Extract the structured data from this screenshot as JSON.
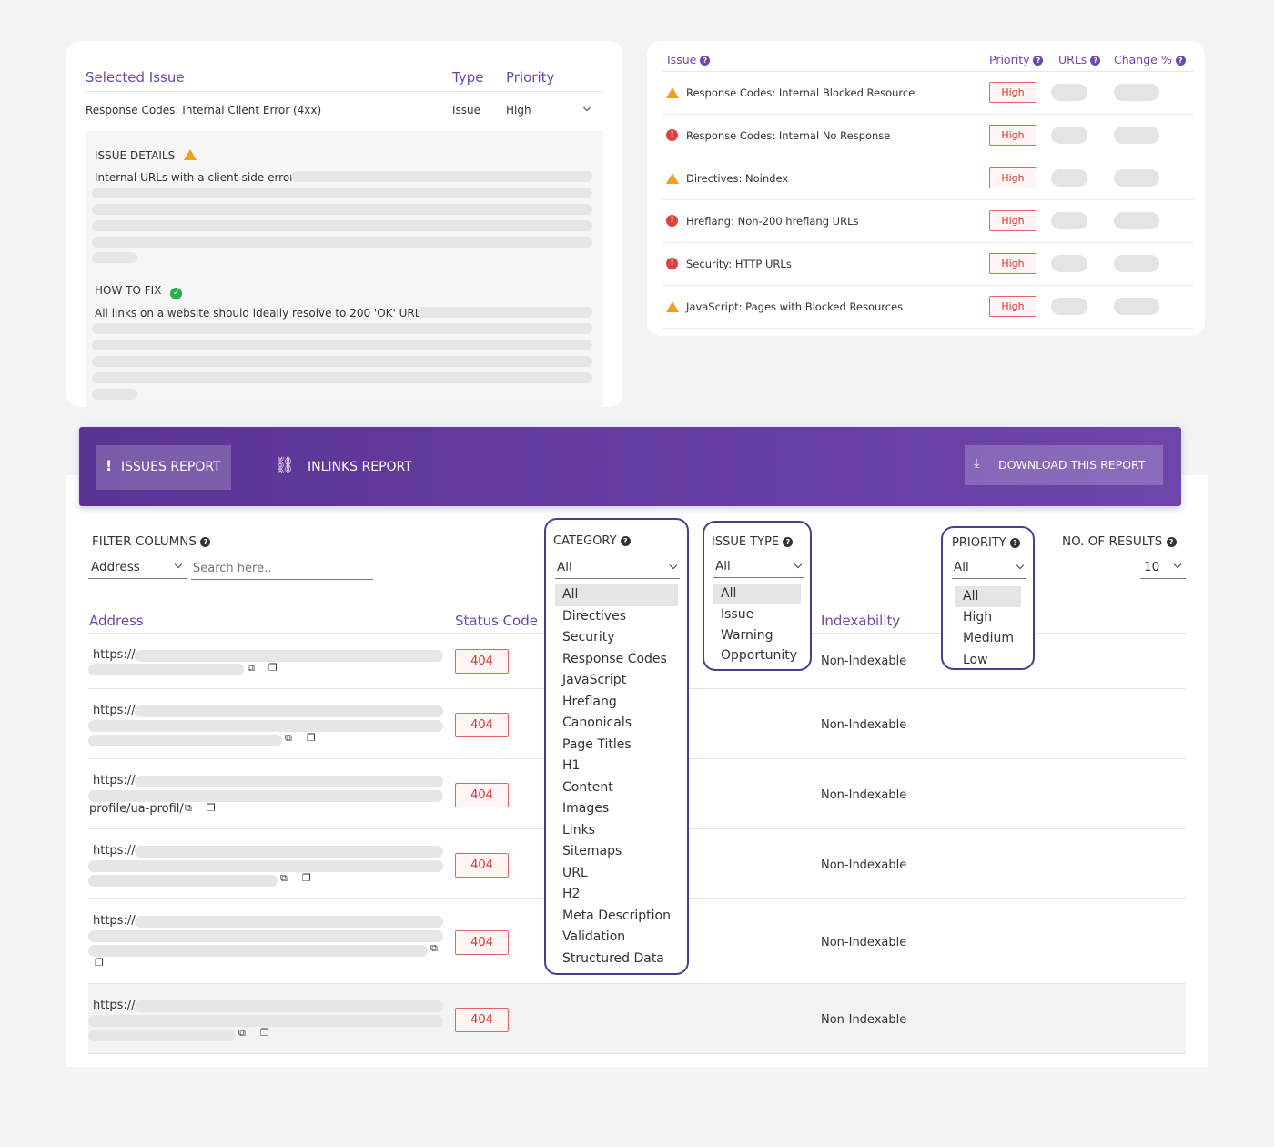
{
  "selected_issue": {
    "col_issue": "Selected Issue",
    "col_type": "Type",
    "col_priority": "Priority",
    "issue_name": "Response Codes: Internal Client Error (4xx)",
    "type_value": "Issue",
    "priority_value": "High",
    "details_heading": "ISSUE DETAILS",
    "details_text": "Internal URLs with a client-side error.",
    "fix_heading": "HOW TO FIX",
    "fix_text": "All links on a website should ideally resolve to 200 'OK' URLs."
  },
  "issues_table": {
    "col_issue": "Issue",
    "col_priority": "Priority",
    "col_urls": "URLs",
    "col_change": "Change %",
    "rows": [
      {
        "name": "Response Codes: Internal Blocked Resource",
        "icon": "warning-icon",
        "priority": "High"
      },
      {
        "name": "Response Codes: Internal No Response",
        "icon": "error-icon",
        "priority": "High"
      },
      {
        "name": "Directives: Noindex",
        "icon": "warning-icon",
        "priority": "High"
      },
      {
        "name": "Hreflang: Non-200 hreflang URLs",
        "icon": "error-icon",
        "priority": "High"
      },
      {
        "name": "Security: HTTP URLs",
        "icon": "error-icon",
        "priority": "High"
      },
      {
        "name": "JavaScript: Pages with Blocked Resources",
        "icon": "warning-icon",
        "priority": "High"
      }
    ]
  },
  "report_bar": {
    "issues_tab": "ISSUES REPORT",
    "inlinks_tab": "INLINKS REPORT",
    "download": "DOWNLOAD THIS REPORT",
    "gradient_start": "#5a3494",
    "gradient_end": "#6e46ab"
  },
  "filters": {
    "filter_columns_label": "FILTER COLUMNS",
    "column_select": "Address",
    "search_placeholder": "Search here..",
    "category_label": "CATEGORY",
    "category_value": "All",
    "category_options": [
      "All",
      "Directives",
      "Security",
      "Response Codes",
      "JavaScript",
      "Hreflang",
      "Canonicals",
      "Page Titles",
      "H1",
      "Content",
      "Images",
      "Links",
      "Sitemaps",
      "URL",
      "H2",
      "Meta Description",
      "Validation",
      "Structured Data"
    ],
    "issue_type_label": "ISSUE TYPE",
    "issue_type_value": "All",
    "issue_type_options": [
      "All",
      "Issue",
      "Warning",
      "Opportunity"
    ],
    "priority_label": "PRIORITY",
    "priority_value": "All",
    "priority_options": [
      "All",
      "High",
      "Medium",
      "Low"
    ],
    "results_label": "NO. OF RESULTS",
    "results_value": "10"
  },
  "results_table": {
    "col_address": "Address",
    "col_status": "Status Code",
    "col_indexability": "Indexability",
    "rows": [
      {
        "url_prefix": "https://",
        "url_tail": "",
        "status": "404",
        "indexability": "Non-Indexable"
      },
      {
        "url_prefix": "https://",
        "url_tail": "",
        "status": "404",
        "indexability": "Non-Indexable"
      },
      {
        "url_prefix": "https://",
        "url_tail": "profile/ua-profil/",
        "status": "404",
        "indexability": "Non-Indexable"
      },
      {
        "url_prefix": "https://",
        "url_tail": "",
        "status": "404",
        "indexability": "Non-Indexable"
      },
      {
        "url_prefix": "https://",
        "url_tail": "",
        "status": "404",
        "indexability": "Non-Indexable"
      },
      {
        "url_prefix": "https://",
        "url_tail": "",
        "status": "404",
        "indexability": "Non-Indexable"
      }
    ]
  }
}
